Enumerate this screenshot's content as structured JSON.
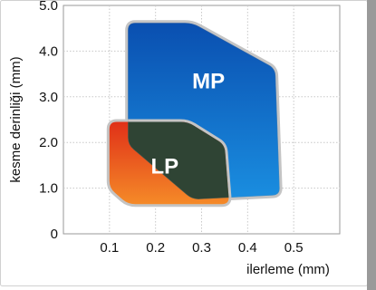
{
  "chart_data": {
    "type": "area",
    "title": "",
    "xlabel": "ilerleme (mm)",
    "ylabel": "kesme derinliği (mm)",
    "x_ticks": [
      {
        "value": 0.1,
        "label": "0.1"
      },
      {
        "value": 0.2,
        "label": "0.2"
      },
      {
        "value": 0.3,
        "label": "0.3"
      },
      {
        "value": 0.4,
        "label": "0.4"
      },
      {
        "value": 0.5,
        "label": "0.5"
      }
    ],
    "y_ticks": [
      {
        "value": 0,
        "label": "0"
      },
      {
        "value": 1.0,
        "label": "1.0"
      },
      {
        "value": 2.0,
        "label": "2.0"
      },
      {
        "value": 3.0,
        "label": "3.0"
      },
      {
        "value": 4.0,
        "label": "4.0"
      },
      {
        "value": 5.0,
        "label": "5.0"
      }
    ],
    "xlim": [
      0,
      0.6
    ],
    "ylim": [
      0,
      5.0
    ],
    "grid": true,
    "legend": "none",
    "regions": [
      {
        "name": "MP",
        "label": "MP",
        "color_top": "#0a4fb0",
        "color_bottom": "#1a8ee0",
        "points": [
          [
            0.14,
            4.62
          ],
          [
            0.28,
            4.62
          ],
          [
            0.46,
            3.62
          ],
          [
            0.47,
            0.85
          ],
          [
            0.28,
            0.75
          ],
          [
            0.14,
            1.95
          ]
        ]
      },
      {
        "name": "LP",
        "label": "LP",
        "color_top": "#e03018",
        "color_bottom": "#f58a28",
        "points": [
          [
            0.1,
            2.45
          ],
          [
            0.27,
            2.45
          ],
          [
            0.35,
            1.95
          ],
          [
            0.36,
            0.65
          ],
          [
            0.14,
            0.65
          ],
          [
            0.1,
            1.0
          ]
        ]
      }
    ],
    "overlap_color": "#2f4434",
    "label_color": "#ffffff"
  }
}
